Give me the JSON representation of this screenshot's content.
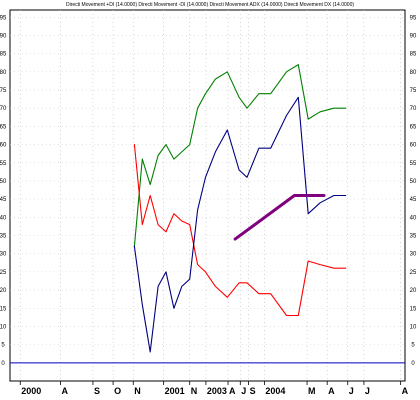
{
  "title": "Directi Movement +DI (14.0000) Directi Movement -DI (14.0000) Directi Movement ADX (14.0000) Directi Movement DX (14.0000)",
  "colors": {
    "background": "#ffffff",
    "plus_di": "#008000",
    "minus_di": "#ff0000",
    "dx": "#000080",
    "adx": "#800080",
    "zero_line": "#0000c0"
  },
  "chart_data": {
    "type": "line",
    "grid": true,
    "ylim": [
      -5,
      97
    ],
    "yticks": [
      0,
      5,
      10,
      15,
      20,
      25,
      30,
      35,
      40,
      45,
      50,
      55,
      60,
      65,
      70,
      75,
      80,
      85,
      90,
      95
    ],
    "ytick_labels": [
      "0",
      "5",
      "10",
      "15",
      "20",
      "25",
      "30",
      "35",
      "40",
      "45",
      "50",
      "55",
      "60",
      "65",
      "70",
      "75",
      "80",
      "85",
      "90",
      "95"
    ],
    "xlim": [
      0,
      100
    ],
    "x_ticks": [
      {
        "label": "2000",
        "x": 2.6
      },
      {
        "label": "A",
        "x": 12.8
      },
      {
        "label": "S",
        "x": 21.0
      },
      {
        "label": "O",
        "x": 26.1
      },
      {
        "label": "N",
        "x": 31.2
      },
      {
        "label": "2001",
        "x": 38.9
      },
      {
        "label": "N",
        "x": 45.5
      },
      {
        "label": "2003",
        "x": 49.6
      },
      {
        "label": "A",
        "x": 55.2
      },
      {
        "label": "J",
        "x": 58.3
      },
      {
        "label": "S",
        "x": 60.4
      },
      {
        "label": "2004",
        "x": 64.4
      },
      {
        "label": "M",
        "x": 75.2
      },
      {
        "label": "A",
        "x": 80.3
      },
      {
        "label": "J",
        "x": 85.5
      },
      {
        "label": "J",
        "x": 89.6
      },
      {
        "label": "A",
        "x": 98.9
      }
    ],
    "series": [
      {
        "name": "+DI",
        "color": "#008000",
        "x": [
          31.5,
          33.5,
          35.5,
          37.5,
          39.5,
          41.5,
          43.5,
          45.5,
          47.5,
          49.5,
          52.0,
          55.0,
          58.0,
          60.0,
          63.0,
          66.0,
          70.0,
          73.0,
          75.5,
          78.5,
          82.0,
          85.0
        ],
        "y": [
          32,
          56,
          49,
          57,
          60,
          56,
          58,
          60,
          70,
          74,
          78,
          80,
          73,
          70,
          74,
          74,
          80,
          82,
          67,
          69,
          70,
          70
        ]
      },
      {
        "name": "-DI",
        "color": "#ff0000",
        "x": [
          31.5,
          33.5,
          35.5,
          37.5,
          39.5,
          41.5,
          43.5,
          45.5,
          47.5,
          49.5,
          52.0,
          55.0,
          58.0,
          60.0,
          63.0,
          66.0,
          70.0,
          73.0,
          75.5,
          78.5,
          82.0,
          85.0
        ],
        "y": [
          60,
          38,
          46,
          38,
          36,
          41,
          39,
          38,
          27,
          25,
          21,
          18,
          22,
          22,
          19,
          19,
          13,
          13,
          28,
          27,
          26,
          26
        ]
      },
      {
        "name": "DX",
        "color": "#000080",
        "x": [
          31.5,
          33.5,
          35.5,
          37.5,
          39.5,
          41.5,
          43.5,
          45.5,
          47.5,
          49.5,
          52.0,
          55.0,
          58.0,
          60.0,
          63.0,
          66.0,
          70.0,
          73.0,
          75.5,
          78.5,
          82.0,
          85.0
        ],
        "y": [
          32,
          16,
          3,
          21,
          25,
          15,
          21,
          23,
          42,
          51,
          58,
          64,
          53,
          51,
          59,
          59,
          68,
          73,
          41,
          44,
          46,
          46
        ]
      },
      {
        "name": "ADX",
        "color": "#800080",
        "x": [
          57.0,
          72.0,
          77.0,
          79.5
        ],
        "y": [
          34,
          46,
          46,
          46
        ]
      }
    ],
    "hlines": [
      {
        "y": 0,
        "color": "#0000c0"
      }
    ]
  }
}
